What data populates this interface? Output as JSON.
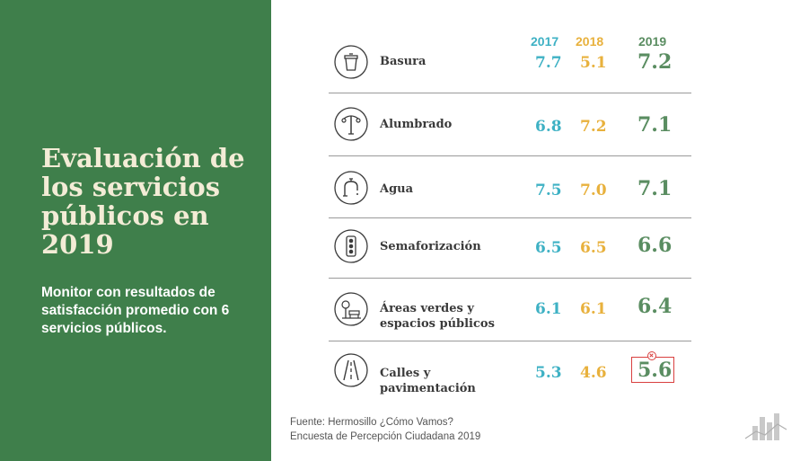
{
  "title": "Evaluación de los servicios públicos en 2019",
  "subtitle": "Monitor con resultados de satisfacción promedio con 6 servicios públicos.",
  "years": {
    "y2017": "2017",
    "y2018": "2018",
    "y2019": "2019"
  },
  "rows": [
    {
      "label": "Basura",
      "icon": "trash-icon",
      "v2017": "7.7",
      "v2018": "5.1",
      "v2019": "7.2"
    },
    {
      "label": "Alumbrado",
      "icon": "street-light-icon",
      "v2017": "6.8",
      "v2018": "7.2",
      "v2019": "7.1"
    },
    {
      "label": "Agua",
      "icon": "faucet-icon",
      "v2017": "7.5",
      "v2018": "7.0",
      "v2019": "7.1"
    },
    {
      "label": "Semaforización",
      "icon": "traffic-light-icon",
      "v2017": "6.5",
      "v2018": "6.5",
      "v2019": "6.6"
    },
    {
      "label_line1": "Áreas verdes y",
      "label_line2": "espacios públicos",
      "icon": "park-bench-icon",
      "v2017": "6.1",
      "v2018": "6.1",
      "v2019": "6.4"
    },
    {
      "label_line1": "Calles y",
      "label_line2": "pavimentación",
      "icon": "road-icon",
      "v2017": "5.3",
      "v2018": "4.6",
      "v2019": "5.6"
    }
  ],
  "source_line1": "Fuente: Hermosillo ¿Cómo Vamos?",
  "source_line2": "Encuesta de Percepción Ciudadana 2019",
  "colors": {
    "green_panel": "#3f7f4b",
    "c2017": "#3eb1c4",
    "c2018": "#e8b13d",
    "c2019": "#5a8d61",
    "highlight": "#d9403f"
  }
}
